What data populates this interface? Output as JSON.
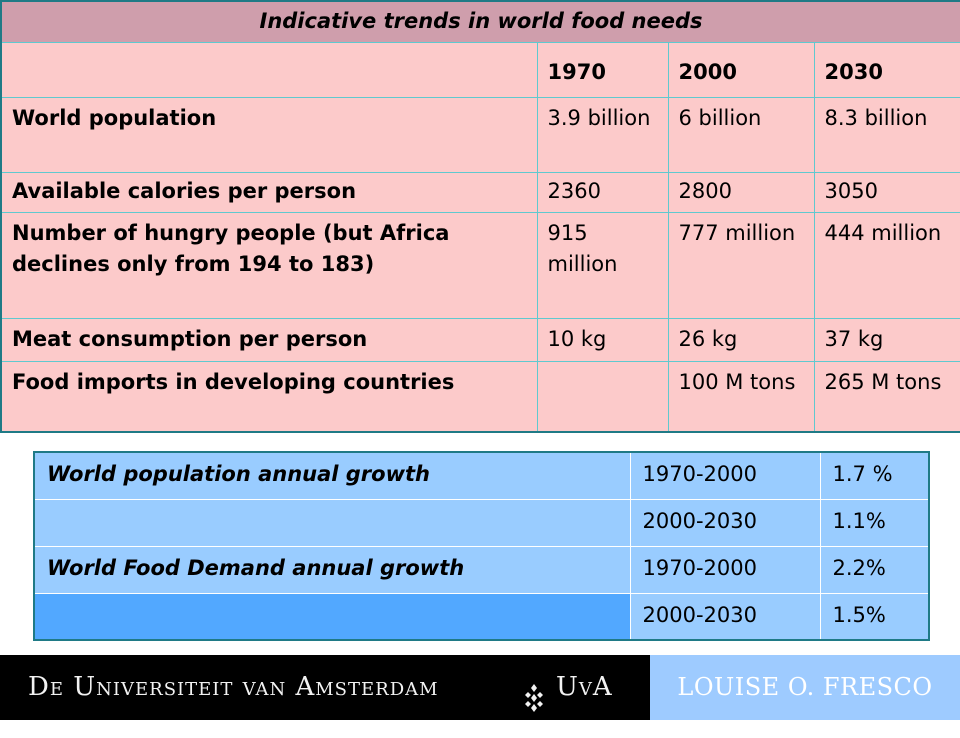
{
  "trends_table": {
    "title": "Indicative trends in world food needs",
    "years": [
      "1970",
      "2000",
      "2030"
    ],
    "rows": [
      {
        "label": "World population",
        "values": [
          "3.9 billion",
          "6 billion",
          "8.3 billion"
        ]
      },
      {
        "label": "Available calories per person",
        "values": [
          "2360",
          "2800",
          "3050"
        ]
      },
      {
        "label": "Number of hungry people (but Africa declines only from 194 to 183)",
        "values": [
          "915 million",
          "777 million",
          "444 million"
        ]
      },
      {
        "label": "Meat consumption per person",
        "values": [
          "10 kg",
          "26 kg",
          "37 kg"
        ]
      },
      {
        "label": "Food imports in developing countries",
        "values": [
          "",
          "100 M tons",
          "265 M tons"
        ]
      }
    ]
  },
  "growth_table": {
    "rows": [
      {
        "label": "World population annual growth",
        "period": "1970-2000",
        "rate": "1.7 %"
      },
      {
        "label": "",
        "period": "2000-2030",
        "rate": "1.1%"
      },
      {
        "label": "World Food Demand annual growth",
        "period": "1970-2000",
        "rate": "2.2%"
      },
      {
        "label": "",
        "period": "2000-2030",
        "rate": "1.5%"
      }
    ]
  },
  "footer": {
    "university_name": "De Universiteit van Amsterdam",
    "university_abbr": "UvA",
    "author": "LOUISE O. FRESCO",
    "emblem_icon": "uva-emblem-icon"
  },
  "colors": {
    "title_band": "#cf9eac",
    "trend_rows": "#fccaca",
    "growth_light": "#99ccff",
    "growth_mid": "#52a8ff",
    "footer_bar": "#000000",
    "author_band": "#9ecbff"
  }
}
